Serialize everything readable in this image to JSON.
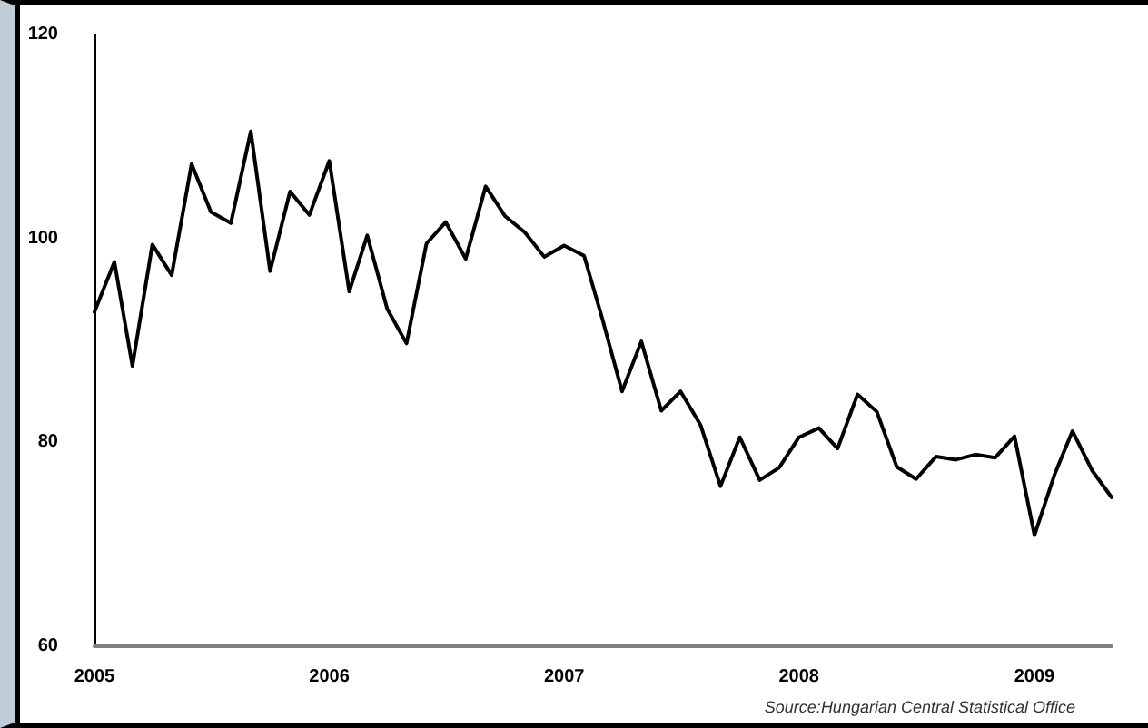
{
  "chart_data": {
    "type": "line",
    "x": [
      "2005-01",
      "2005-02",
      "2005-03",
      "2005-04",
      "2005-05",
      "2005-06",
      "2005-07",
      "2005-08",
      "2005-09",
      "2005-10",
      "2005-11",
      "2005-12",
      "2006-01",
      "2006-02",
      "2006-03",
      "2006-04",
      "2006-05",
      "2006-06",
      "2006-07",
      "2006-08",
      "2006-09",
      "2006-10",
      "2006-11",
      "2006-12",
      "2007-01",
      "2007-02",
      "2007-03",
      "2007-04",
      "2007-05",
      "2007-06",
      "2007-07",
      "2007-08",
      "2007-09",
      "2007-10",
      "2007-11",
      "2007-12",
      "2008-01",
      "2008-02",
      "2008-03",
      "2008-04",
      "2008-05",
      "2008-06",
      "2008-07",
      "2008-08",
      "2008-09",
      "2008-10",
      "2008-11",
      "2008-12",
      "2009-01",
      "2009-02",
      "2009-03",
      "2009-04",
      "2009-05"
    ],
    "series": [
      {
        "color": "#000000",
        "values": [
          92.8,
          97.7,
          87.5,
          99.4,
          96.4,
          107.3,
          102.6,
          101.5,
          110.5,
          96.8,
          104.6,
          102.3,
          107.6,
          94.8,
          100.3,
          93.1,
          89.7,
          99.5,
          101.6,
          98.0,
          105.1,
          102.2,
          100.6,
          98.2,
          99.3,
          98.3,
          92.2,
          85.0,
          89.9,
          83.1,
          85.0,
          81.7,
          75.7,
          80.5,
          76.3,
          77.5,
          80.5,
          81.4,
          79.4,
          84.7,
          83.0,
          77.6,
          76.4,
          78.6,
          78.3,
          78.8,
          78.5,
          80.6,
          70.9,
          76.8,
          81.1,
          77.2,
          74.6
        ]
      }
    ],
    "xlim": [
      "2005-01",
      "2009-05"
    ],
    "xticks": [
      {
        "value": "2005",
        "label": "2005"
      },
      {
        "value": "2006",
        "label": "2006"
      },
      {
        "value": "2007",
        "label": "2007"
      },
      {
        "value": "2008",
        "label": "2008"
      },
      {
        "value": "2009",
        "label": "2009"
      }
    ],
    "ylim": [
      60,
      120
    ],
    "yticks": [
      60,
      80,
      100,
      120
    ],
    "grid": false,
    "marker": "none",
    "line_style": "solid",
    "annotations": [
      "Source:Hungarian Central Statistical Office"
    ]
  }
}
